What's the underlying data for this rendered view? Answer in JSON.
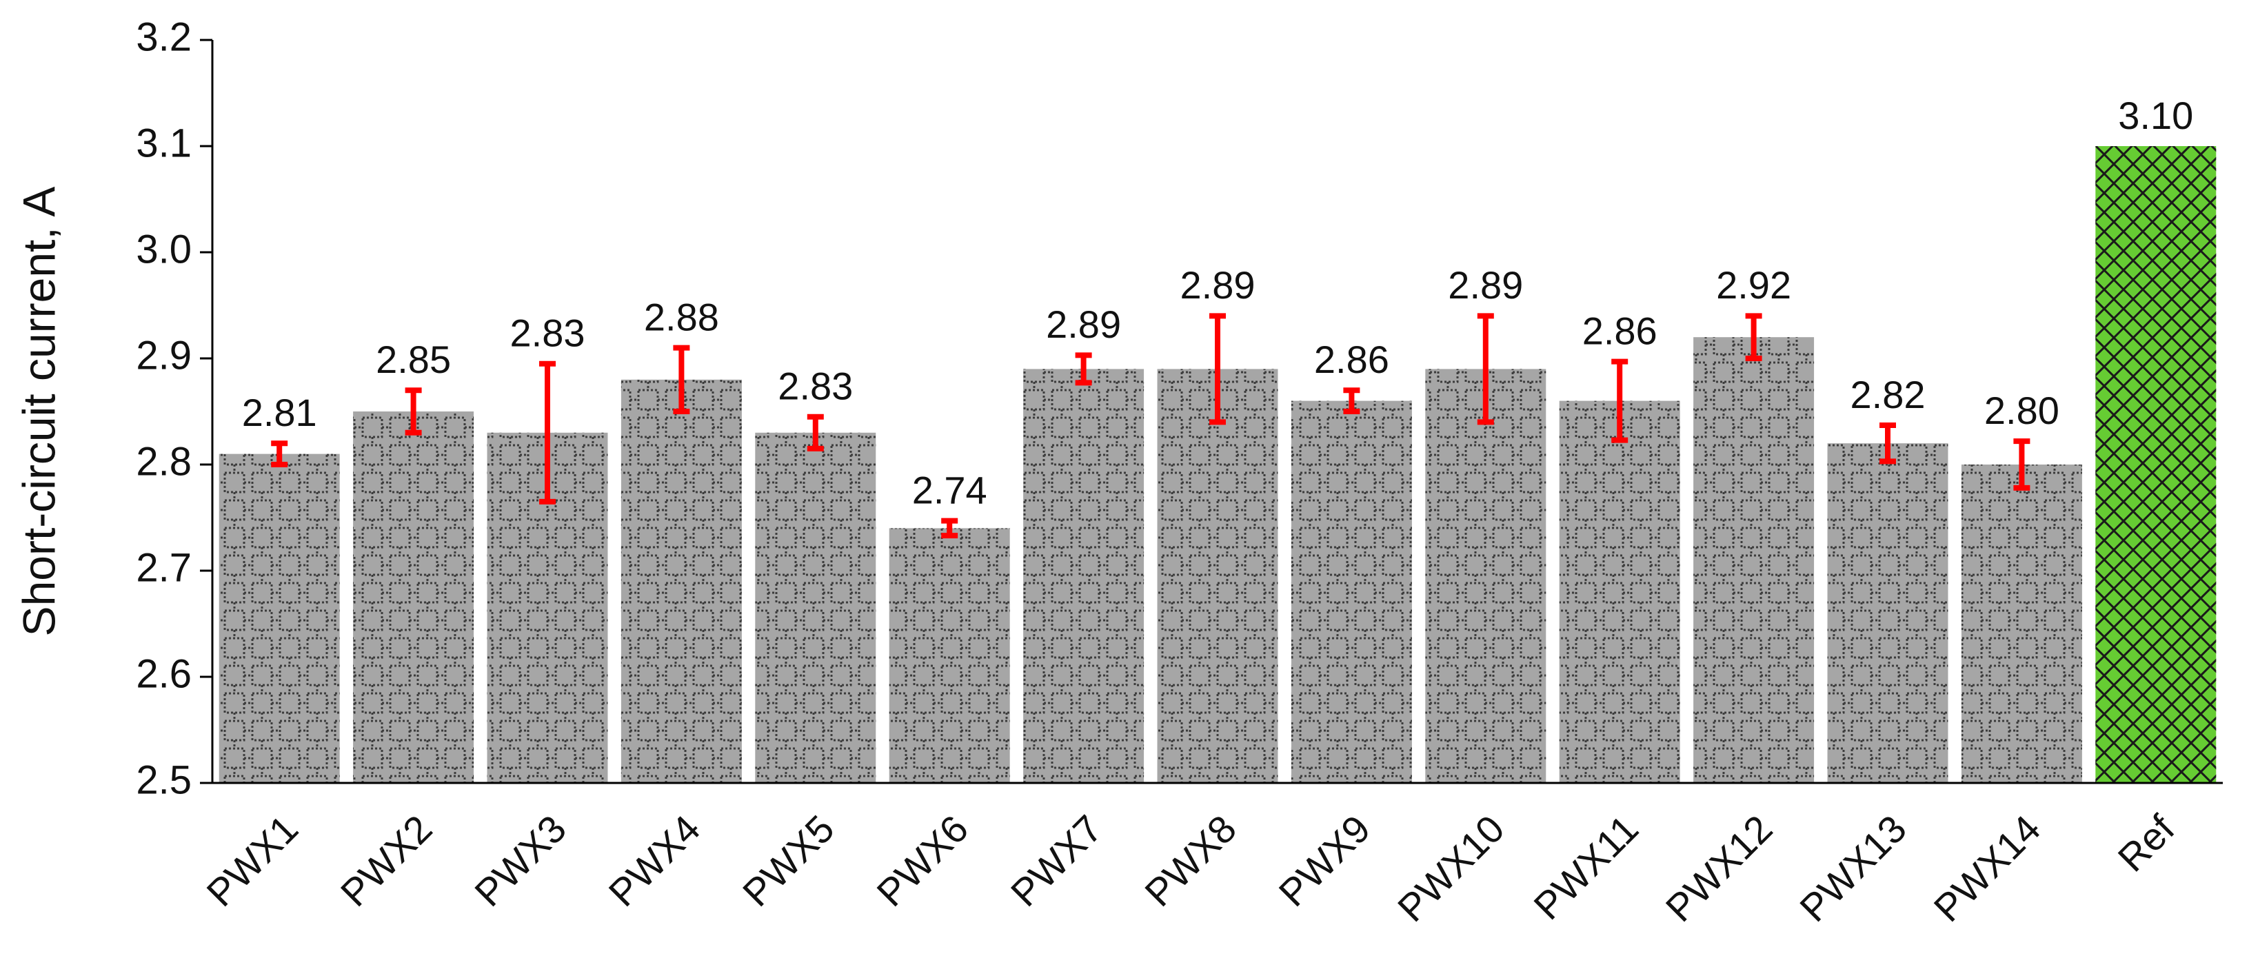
{
  "chart_data": {
    "type": "bar",
    "ylabel": "Short-circuit current, A",
    "categories": [
      "PWX1",
      "PWX2",
      "PWX3",
      "PWX4",
      "PWX5",
      "PWX6",
      "PWX7",
      "PWX8",
      "PWX9",
      "PWX10",
      "PWX11",
      "PWX12",
      "PWX13",
      "PWX14",
      "Ref"
    ],
    "values": [
      2.81,
      2.85,
      2.83,
      2.88,
      2.83,
      2.74,
      2.89,
      2.89,
      2.86,
      2.89,
      2.86,
      2.92,
      2.82,
      2.8,
      3.1
    ],
    "value_labels": [
      "2.81",
      "2.85",
      "2.83",
      "2.88",
      "2.83",
      "2.74",
      "2.89",
      "2.89",
      "2.86",
      "2.89",
      "2.86",
      "2.92",
      "2.82",
      "2.80",
      "3.10"
    ],
    "errors": [
      0.01,
      0.02,
      0.065,
      0.03,
      0.015,
      0.007,
      0.013,
      0.05,
      0.01,
      0.05,
      0.037,
      0.02,
      0.017,
      0.022,
      null
    ],
    "colors": [
      "#a6a6a6",
      "#a6a6a6",
      "#a6a6a6",
      "#a6a6a6",
      "#a6a6a6",
      "#a6a6a6",
      "#a6a6a6",
      "#a6a6a6",
      "#a6a6a6",
      "#a6a6a6",
      "#a6a6a6",
      "#a6a6a6",
      "#a6a6a6",
      "#a6a6a6",
      "#66cc33"
    ],
    "error_color": "#ff0000",
    "ylim": [
      2.5,
      3.2
    ],
    "yticks": [
      2.5,
      2.6,
      2.7,
      2.8,
      2.9,
      {
        "value": 3,
        "label": "3.0"
      },
      3.1,
      3.2
    ]
  }
}
